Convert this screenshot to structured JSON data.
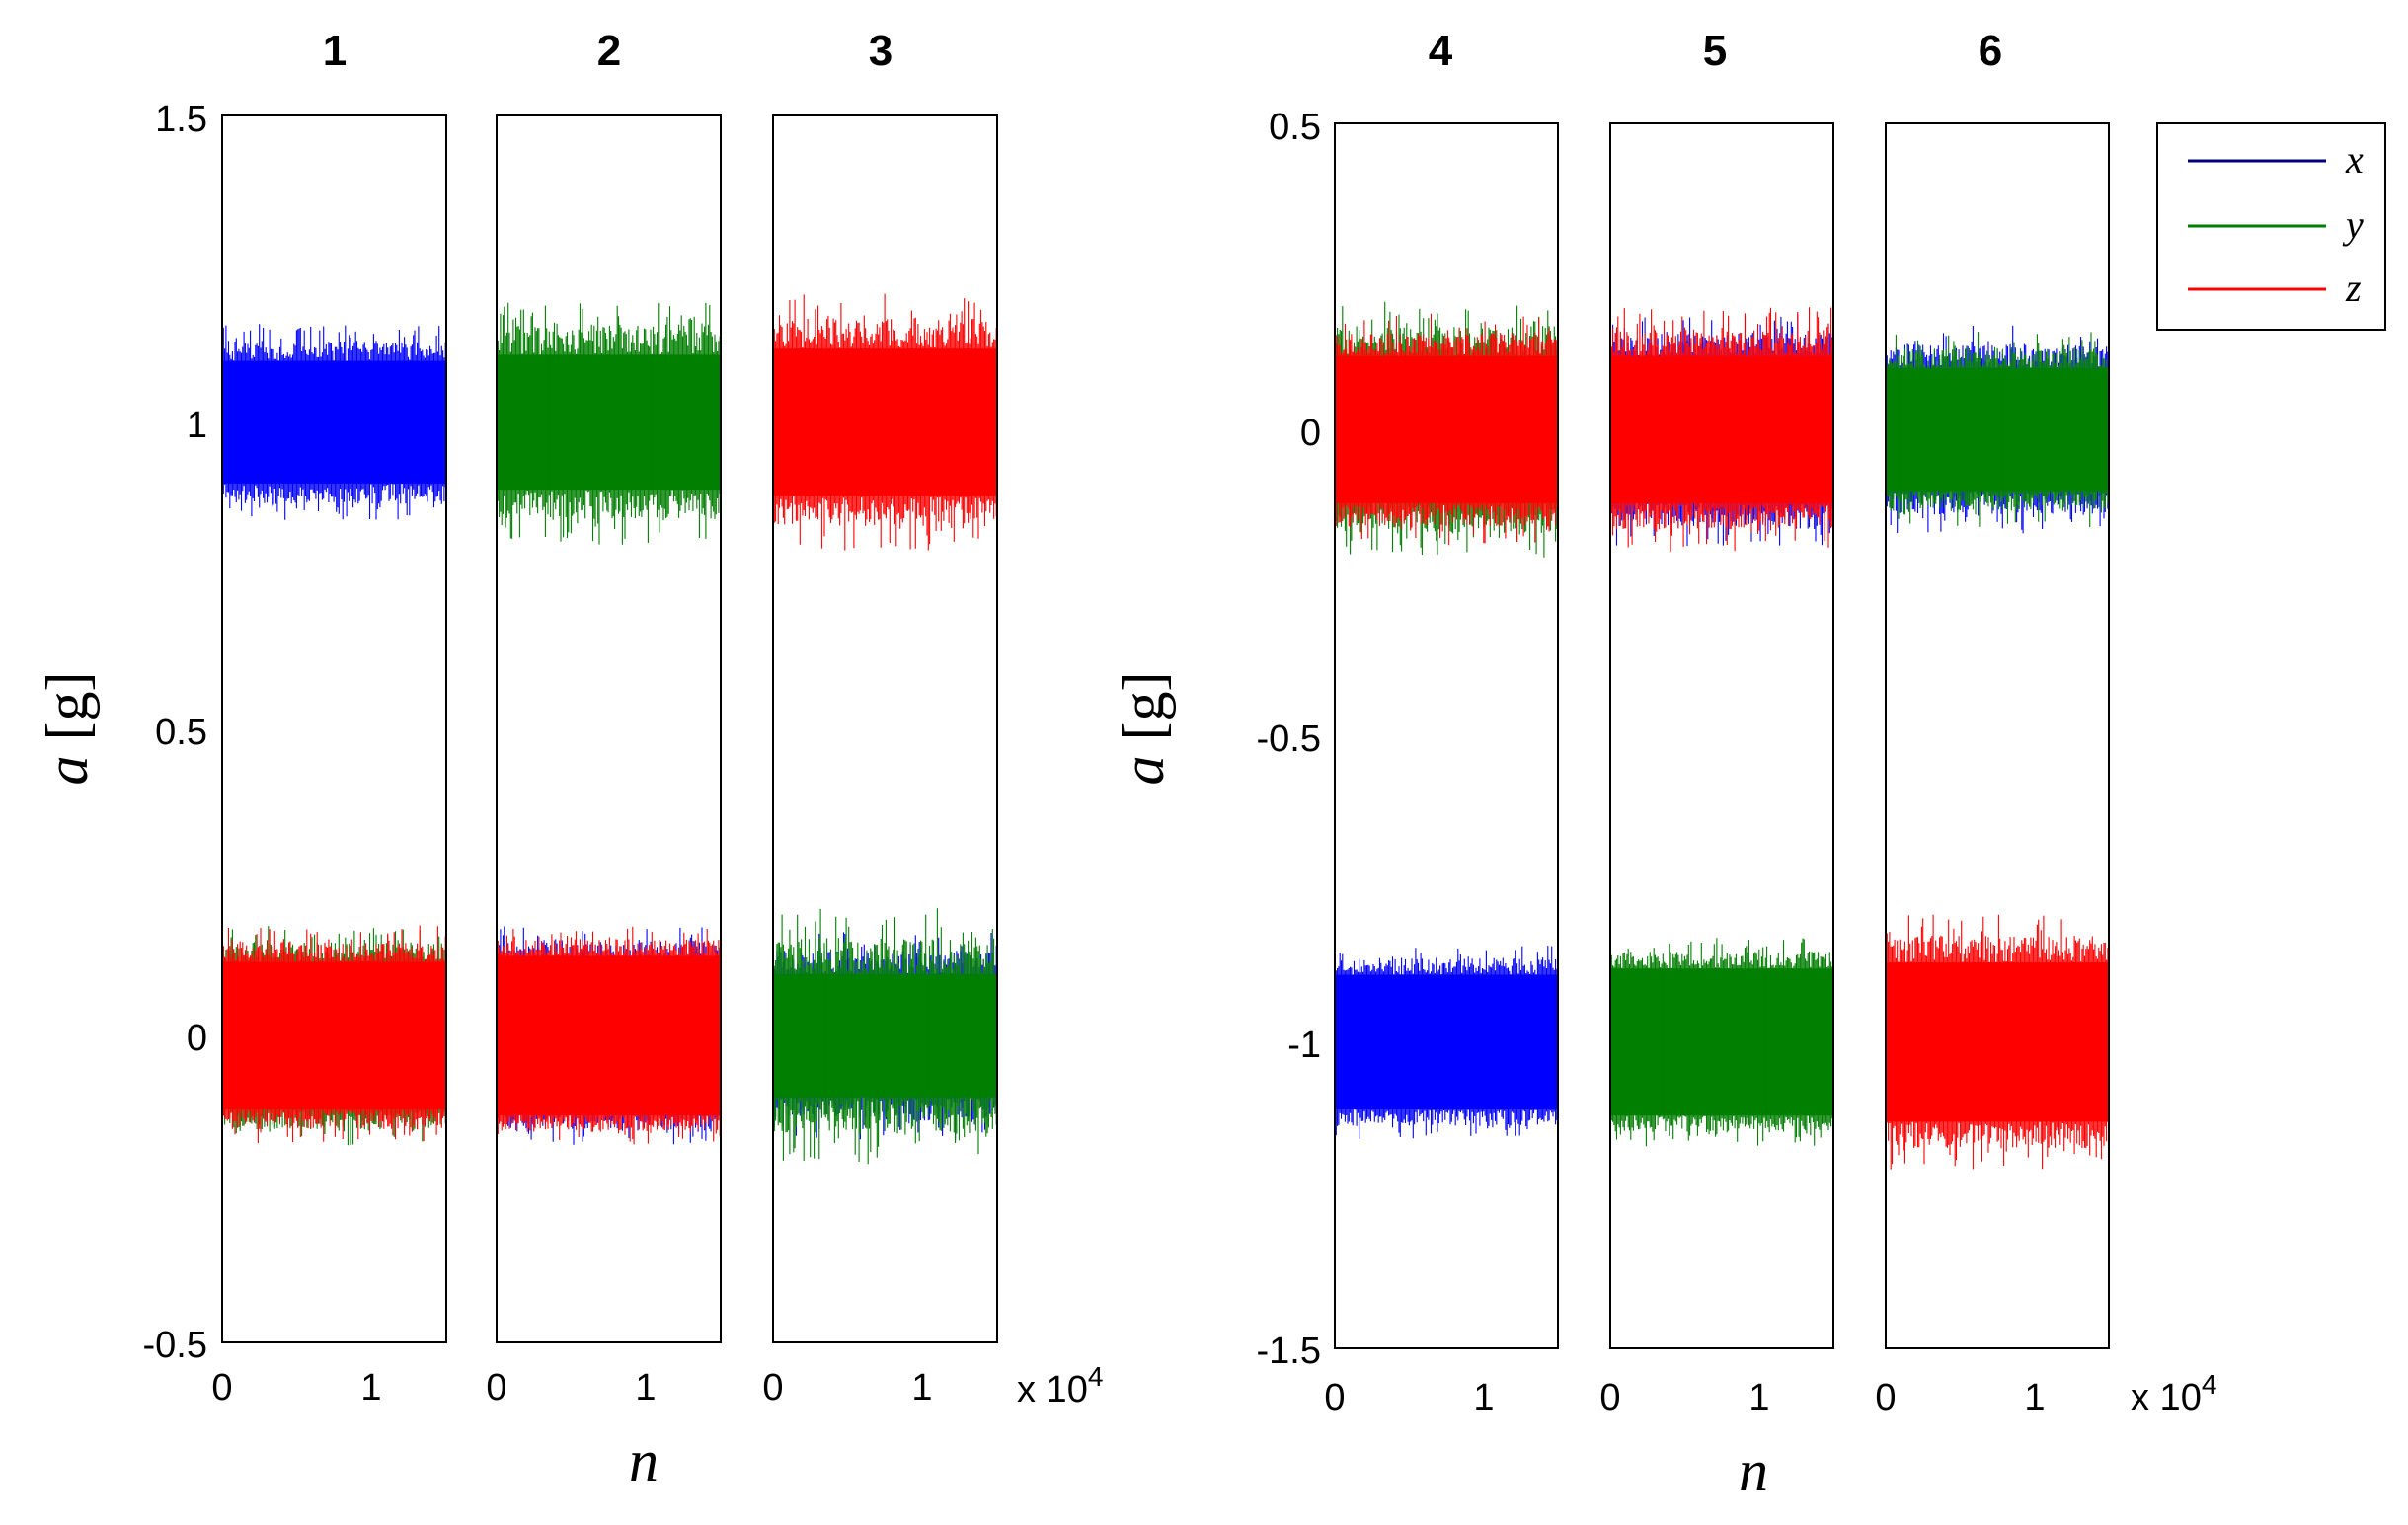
{
  "colors": {
    "x": "#0000ff",
    "y": "#007f00",
    "z": "#ff0000",
    "legend_x": "#00007f"
  },
  "chart_data": [
    {
      "type": "line",
      "ylabel": "a [g]",
      "ylabel_var": "a",
      "ylabel_unit": "[g]",
      "xlabel": "n",
      "ylim": [
        -0.5,
        1.5
      ],
      "yticks": [
        "1.5",
        "1",
        "0.5",
        "0",
        "-0.5"
      ],
      "xlim": [
        0,
        15000
      ],
      "xticks": [
        "0",
        "1"
      ],
      "xscale_label": "x 10",
      "xscale_exp": "4",
      "panels": [
        {
          "title": "1",
          "series": [
            {
              "name": "x",
              "mean": 1.0,
              "halfwidth": 0.1,
              "noise": 0.16
            },
            {
              "name": "y",
              "mean": 0.0,
              "halfwidth": 0.12,
              "noise": 0.18
            },
            {
              "name": "z",
              "mean": 0.0,
              "halfwidth": 0.12,
              "noise": 0.18
            }
          ]
        },
        {
          "title": "2",
          "series": [
            {
              "name": "x",
              "mean": 0.0,
              "halfwidth": 0.12,
              "noise": 0.18
            },
            {
              "name": "y",
              "mean": 1.0,
              "halfwidth": 0.11,
              "noise": 0.2
            },
            {
              "name": "z",
              "mean": 0.0,
              "halfwidth": 0.13,
              "noise": 0.18
            }
          ]
        },
        {
          "title": "3",
          "series": [
            {
              "name": "z",
              "mean": 1.0,
              "halfwidth": 0.12,
              "noise": 0.21
            },
            {
              "name": "x",
              "mean": 0.0,
              "halfwidth": 0.1,
              "noise": 0.17
            },
            {
              "name": "y",
              "mean": 0.0,
              "halfwidth": 0.1,
              "noise": 0.21
            }
          ]
        }
      ]
    },
    {
      "type": "line",
      "ylabel": "a [g]",
      "ylabel_var": "a",
      "ylabel_unit": "[g]",
      "xlabel": "n",
      "ylim": [
        -1.5,
        0.5
      ],
      "yticks": [
        "0.5",
        "0",
        "-0.5",
        "-1",
        "-1.5"
      ],
      "xlim": [
        0,
        15000
      ],
      "xticks": [
        "0",
        "1"
      ],
      "xscale_label": "x 10",
      "xscale_exp": "4",
      "panels": [
        {
          "title": "4",
          "series": [
            {
              "name": "x",
              "mean": -1.0,
              "halfwidth": 0.11,
              "noise": 0.16
            },
            {
              "name": "y",
              "mean": 0.0,
              "halfwidth": 0.12,
              "noise": 0.21
            },
            {
              "name": "z",
              "mean": 0.0,
              "halfwidth": 0.12,
              "noise": 0.19
            }
          ]
        },
        {
          "title": "5",
          "series": [
            {
              "name": "y",
              "mean": -1.0,
              "halfwidth": 0.12,
              "noise": 0.17
            },
            {
              "name": "x",
              "mean": 0.0,
              "halfwidth": 0.12,
              "noise": 0.19
            },
            {
              "name": "z",
              "mean": 0.0,
              "halfwidth": 0.12,
              "noise": 0.2
            }
          ]
        },
        {
          "title": "6",
          "series": [
            {
              "name": "z",
              "mean": -1.0,
              "halfwidth": 0.13,
              "noise": 0.21
            },
            {
              "name": "x",
              "mean": 0.0,
              "halfwidth": 0.1,
              "noise": 0.17
            },
            {
              "name": "y",
              "mean": 0.0,
              "halfwidth": 0.1,
              "noise": 0.16
            }
          ]
        }
      ]
    }
  ],
  "legend": {
    "placement": "top-right",
    "entries": [
      {
        "name": "x",
        "label": "x"
      },
      {
        "name": "y",
        "label": "y"
      },
      {
        "name": "z",
        "label": "z"
      }
    ]
  }
}
